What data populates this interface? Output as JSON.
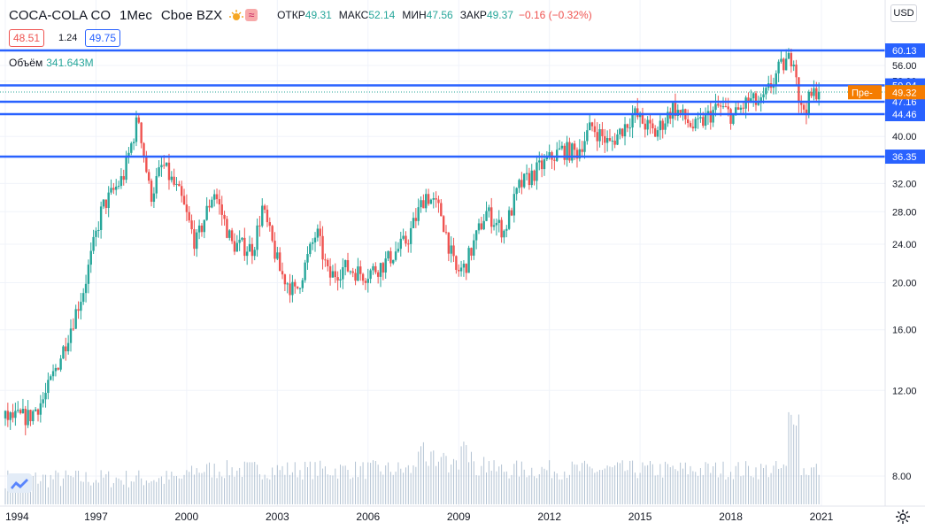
{
  "header": {
    "symbol": "COCA-COLA CO",
    "interval": "1Мес",
    "exchange": "Cboe BZX",
    "open_label": "ОТКР",
    "open": "49.31",
    "high_label": "МАКС",
    "high": "52.14",
    "low_label": "МИН",
    "low": "47.56",
    "close_label": "ЗАКР",
    "close": "49.37",
    "change": "−0.16 (−0.32%)",
    "icons": [
      "sun-icon",
      "wave-icon"
    ]
  },
  "quote": {
    "bid": "48.51",
    "spread": "1.24",
    "ask": "49.75"
  },
  "volume": {
    "label": "Объём",
    "value": "341.643M"
  },
  "currency_button": "USD",
  "colors": {
    "up": "#26a69a",
    "down": "#ef5350",
    "level": "#2962ff",
    "premarket": "#f57c00",
    "volume": "#9fb3c8"
  },
  "chart_data": {
    "type": "candlestick",
    "y_scale": "log",
    "y_ticks": [
      8,
      12,
      16,
      20,
      24,
      28,
      32,
      40,
      44.46,
      52,
      56,
      60.13
    ],
    "y_tick_labels": [
      "8.00",
      "12.00",
      "16.00",
      "20.00",
      "24.00",
      "28.00",
      "32.00",
      "40.00",
      "44.46",
      "52.00",
      "56.00",
      "60.13"
    ],
    "x_tick_labels": [
      "1994",
      "1997",
      "2000",
      "2003",
      "2006",
      "2009",
      "2012",
      "2015",
      "2018",
      "2021"
    ],
    "x_range": [
      1993.9,
      2021.0
    ],
    "price_path": [
      [
        1993.9,
        10.5
      ],
      [
        1994.8,
        10.6
      ],
      [
        1995.3,
        11.6
      ],
      [
        1995.9,
        14.5
      ],
      [
        1996.6,
        19.5
      ],
      [
        1997.2,
        28.5
      ],
      [
        1997.9,
        33.0
      ],
      [
        1998.4,
        44.0
      ],
      [
        1998.8,
        30.0
      ],
      [
        1999.2,
        35.0
      ],
      [
        1999.8,
        30.0
      ],
      [
        2000.3,
        24.0
      ],
      [
        2000.9,
        31.0
      ],
      [
        2001.5,
        24.0
      ],
      [
        2002.2,
        23.5
      ],
      [
        2002.5,
        28.5
      ],
      [
        2003.1,
        21.0
      ],
      [
        2003.6,
        19.0
      ],
      [
        2004.3,
        25.5
      ],
      [
        2004.7,
        20.5
      ],
      [
        2005.2,
        21.5
      ],
      [
        2005.9,
        20.8
      ],
      [
        2006.5,
        21.8
      ],
      [
        2007.3,
        24.5
      ],
      [
        2007.9,
        30.5
      ],
      [
        2008.4,
        28.0
      ],
      [
        2008.9,
        21.0
      ],
      [
        2009.2,
        21.5
      ],
      [
        2009.9,
        28.0
      ],
      [
        2010.5,
        25.5
      ],
      [
        2011.0,
        31.5
      ],
      [
        2011.9,
        35.5
      ],
      [
        2012.4,
        37.5
      ],
      [
        2012.9,
        37.0
      ],
      [
        2013.4,
        42.0
      ],
      [
        2014.0,
        38.5
      ],
      [
        2014.8,
        44.5
      ],
      [
        2015.5,
        40.5
      ],
      [
        2016.1,
        46.0
      ],
      [
        2016.8,
        41.5
      ],
      [
        2017.6,
        46.0
      ],
      [
        2018.1,
        44.0
      ],
      [
        2018.6,
        47.5
      ],
      [
        2019.0,
        46.5
      ],
      [
        2019.6,
        55.0
      ],
      [
        2020.1,
        59.0
      ],
      [
        2020.3,
        45.0
      ],
      [
        2020.5,
        46.5
      ],
      [
        2020.9,
        50.5
      ]
    ],
    "levels": [
      {
        "value": 60.13,
        "label": "60.13"
      },
      {
        "value": 50.94,
        "label": "50.94"
      },
      {
        "value": 47.16,
        "label": "47.16"
      },
      {
        "value": 44.46,
        "label": "44.46"
      },
      {
        "value": 36.35,
        "label": "36.35"
      }
    ],
    "last_price": {
      "value": 49.37,
      "label": "49.37"
    },
    "premarket": {
      "value": 49.32,
      "label": "49.32",
      "tag": "Пре-"
    }
  }
}
